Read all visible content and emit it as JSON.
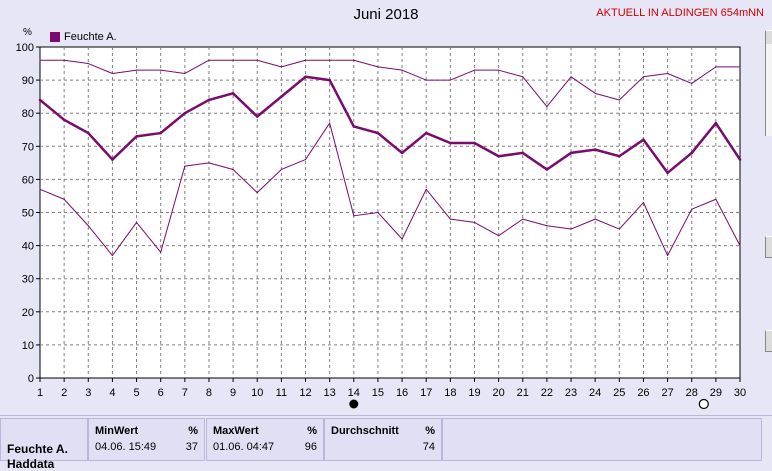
{
  "title": "Juni 2018",
  "station": "AKTUELL IN ALDINGEN 654mNN",
  "unit": "%",
  "legend": "Feuchte A.",
  "colors": {
    "series": "#7a0a6e",
    "grid": "#808080",
    "background": "#ffffff"
  },
  "chart_data": {
    "type": "line",
    "title": "Juni 2018",
    "ylabel": "%",
    "ylim": [
      0,
      100
    ],
    "yticks": [
      0,
      10,
      20,
      30,
      40,
      50,
      60,
      70,
      80,
      90,
      100
    ],
    "x": [
      1,
      2,
      3,
      4,
      5,
      6,
      7,
      8,
      9,
      10,
      11,
      12,
      13,
      14,
      15,
      16,
      17,
      18,
      19,
      20,
      21,
      22,
      23,
      24,
      25,
      26,
      27,
      28,
      29,
      30
    ],
    "grid": true,
    "legend_position": "top-left",
    "series": [
      {
        "name": "Feuchte A.",
        "role": "max",
        "values": [
          96,
          96,
          95,
          92,
          93,
          93,
          92,
          96,
          96,
          96,
          94,
          96,
          96,
          96,
          94,
          93,
          90,
          90,
          93,
          93,
          91,
          82,
          91,
          86,
          84,
          91,
          92,
          89,
          94,
          94
        ]
      },
      {
        "name": "Feuchte A.",
        "role": "mean",
        "values": [
          84,
          78,
          74,
          66,
          73,
          74,
          80,
          84,
          86,
          79,
          85,
          91,
          90,
          76,
          74,
          68,
          74,
          71,
          71,
          67,
          68,
          63,
          68,
          69,
          67,
          72,
          62,
          68,
          77,
          66
        ]
      },
      {
        "name": "Feuchte A.",
        "role": "min",
        "values": [
          57,
          54,
          46,
          37,
          47,
          38,
          64,
          65,
          63,
          56,
          63,
          66,
          77,
          49,
          50,
          42,
          57,
          48,
          47,
          43,
          48,
          46,
          45,
          48,
          45,
          53,
          37,
          51,
          54,
          40
        ]
      }
    ],
    "markers": [
      {
        "x": 14,
        "symbol": "filled-circle"
      },
      {
        "x": 28.5,
        "symbol": "open-circle"
      }
    ]
  },
  "stats": {
    "series_label": "Feuchte A.",
    "series_label2": "Haddata",
    "min": {
      "header": "MinWert",
      "unit": "%",
      "time": "04.06.  15:49",
      "value": "37"
    },
    "max": {
      "header": "MaxWert",
      "unit": "%",
      "time": "01.06.  04:47",
      "value": "96"
    },
    "avg": {
      "header": "Durchschnitt",
      "unit": "%",
      "value": "74"
    }
  }
}
